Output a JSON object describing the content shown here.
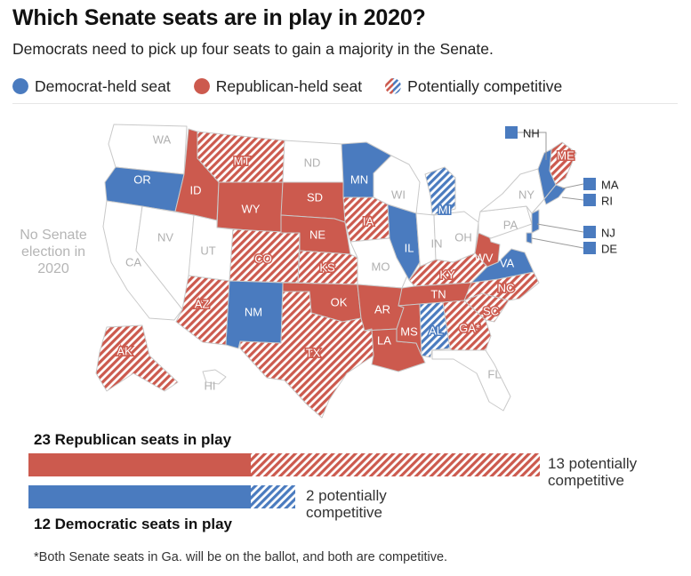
{
  "header": {
    "title": "Which Senate seats are in play in 2020?",
    "subtitle": "Democrats need to pick up four seats to gain a majority in the Senate."
  },
  "legend": {
    "items": [
      {
        "label": "Democrat-held seat",
        "type": "dem"
      },
      {
        "label": "Republican-held seat",
        "type": "rep"
      },
      {
        "label": "Potentially competitive",
        "type": "competitive"
      }
    ]
  },
  "colors": {
    "democrat": "#4a7bbf",
    "republican": "#cc5a4e",
    "no_election": "#ffffff",
    "border": "#c9c9c9"
  },
  "map": {
    "no_election_note": "No Senate election in 2020",
    "states": [
      {
        "abbr": "WA",
        "status": "none"
      },
      {
        "abbr": "OR",
        "status": "dem"
      },
      {
        "abbr": "CA",
        "status": "none"
      },
      {
        "abbr": "NV",
        "status": "none"
      },
      {
        "abbr": "ID",
        "status": "rep"
      },
      {
        "abbr": "MT",
        "status": "rep-competitive"
      },
      {
        "abbr": "WY",
        "status": "rep"
      },
      {
        "abbr": "UT",
        "status": "none"
      },
      {
        "abbr": "AZ",
        "status": "rep-competitive"
      },
      {
        "abbr": "CO",
        "status": "rep-competitive"
      },
      {
        "abbr": "NM",
        "status": "dem"
      },
      {
        "abbr": "ND",
        "status": "none"
      },
      {
        "abbr": "SD",
        "status": "rep"
      },
      {
        "abbr": "NE",
        "status": "rep"
      },
      {
        "abbr": "KS",
        "status": "rep-competitive"
      },
      {
        "abbr": "OK",
        "status": "rep"
      },
      {
        "abbr": "TX",
        "status": "rep-competitive"
      },
      {
        "abbr": "MN",
        "status": "dem"
      },
      {
        "abbr": "IA",
        "status": "rep-competitive"
      },
      {
        "abbr": "MO",
        "status": "none"
      },
      {
        "abbr": "AR",
        "status": "rep"
      },
      {
        "abbr": "LA",
        "status": "rep"
      },
      {
        "abbr": "WI",
        "status": "none"
      },
      {
        "abbr": "IL",
        "status": "dem"
      },
      {
        "abbr": "MI",
        "status": "dem-competitive"
      },
      {
        "abbr": "IN",
        "status": "none"
      },
      {
        "abbr": "OH",
        "status": "none"
      },
      {
        "abbr": "KY",
        "status": "rep-competitive"
      },
      {
        "abbr": "TN",
        "status": "rep"
      },
      {
        "abbr": "MS",
        "status": "rep"
      },
      {
        "abbr": "AL",
        "status": "dem-competitive"
      },
      {
        "abbr": "GA*",
        "status": "rep-competitive"
      },
      {
        "abbr": "FL",
        "status": "none"
      },
      {
        "abbr": "SC",
        "status": "rep-competitive"
      },
      {
        "abbr": "NC",
        "status": "rep-competitive"
      },
      {
        "abbr": "VA",
        "status": "dem"
      },
      {
        "abbr": "WV",
        "status": "rep"
      },
      {
        "abbr": "PA",
        "status": "none"
      },
      {
        "abbr": "NY",
        "status": "none"
      },
      {
        "abbr": "ME",
        "status": "rep-competitive"
      },
      {
        "abbr": "AK",
        "status": "rep-competitive"
      },
      {
        "abbr": "HI",
        "status": "none"
      }
    ],
    "callouts": [
      {
        "abbr": "NH",
        "status": "dem"
      },
      {
        "abbr": "MA",
        "status": "dem"
      },
      {
        "abbr": "RI",
        "status": "dem"
      },
      {
        "abbr": "NJ",
        "status": "dem"
      },
      {
        "abbr": "DE",
        "status": "dem"
      }
    ]
  },
  "chart_data": {
    "type": "bar",
    "series": [
      {
        "name": "23 Republican seats in play",
        "total": 23,
        "potentially_competitive": 13,
        "note": "13 potentially competitive"
      },
      {
        "name": "12 Democratic seats in play",
        "total": 12,
        "potentially_competitive": 2,
        "note": "2 potentially competitive"
      }
    ]
  },
  "footnote": "*Both Senate seats in Ga. will be on the ballot, and both are competitive."
}
